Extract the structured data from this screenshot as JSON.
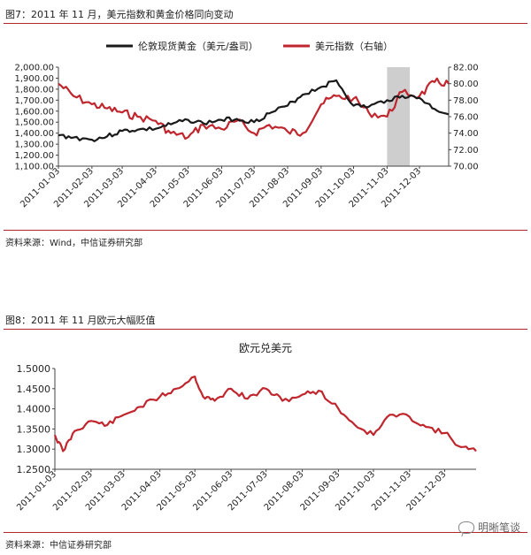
{
  "figure1": {
    "title": "图7：2011 年 11 月，美元指数和黄金价格同向变动",
    "source": "资料来源：Wind，中信证券研究部"
  },
  "figure2": {
    "title": "图8：2011 年 11 月欧元大幅贬值",
    "source": "资料来源：中信证券研究部"
  },
  "watermark": "明晰笔谈",
  "colors": {
    "gold": "#1a1a1a",
    "usd": "#c0262d",
    "eur": "#c0262d",
    "rule": "#b3242a",
    "shade": "#bdbdbd"
  },
  "chart_data": [
    {
      "type": "line",
      "title": "",
      "dates": [
        "2011-01-03",
        "2011-01-17",
        "2011-02-03",
        "2011-02-17",
        "2011-03-03",
        "2011-03-17",
        "2011-04-03",
        "2011-04-17",
        "2011-05-03",
        "2011-05-17",
        "2011-06-03",
        "2011-06-17",
        "2011-07-03",
        "2011-07-17",
        "2011-08-03",
        "2011-08-17",
        "2011-09-03",
        "2011-09-17",
        "2011-10-03",
        "2011-10-17",
        "2011-11-03",
        "2011-11-17",
        "2011-12-03",
        "2011-12-17",
        "2011-12-30"
      ],
      "x_tick_labels": [
        "2011-01-03",
        "2011-02-03",
        "2011-03-03",
        "2011-04-03",
        "2011-05-03",
        "2011-06-03",
        "2011-07-03",
        "2011-08-03",
        "2011-09-03",
        "2011-10-03",
        "2011-11-03",
        "2011-12-03"
      ],
      "series": [
        {
          "name": "伦敦现货黄金（美元/盎司）",
          "axis": "left",
          "values": [
            1380,
            1360,
            1340,
            1370,
            1420,
            1430,
            1440,
            1480,
            1520,
            1490,
            1520,
            1530,
            1500,
            1580,
            1650,
            1750,
            1820,
            1880,
            1650,
            1640,
            1700,
            1740,
            1720,
            1620,
            1570
          ]
        },
        {
          "name": "美元指数（右轴）",
          "axis": "right",
          "values": [
            80.0,
            78.5,
            77.5,
            77.0,
            76.5,
            76.0,
            75.5,
            74.0,
            73.5,
            75.0,
            74.5,
            75.5,
            74.0,
            75.0,
            74.2,
            74.0,
            77.5,
            78.5,
            78.2,
            76.5,
            76.0,
            79.0,
            78.5,
            80.2,
            80.0
          ]
        }
      ],
      "y_left": {
        "min": 1100,
        "max": 2000,
        "ticks": [
          "1,100.00",
          "1,200.00",
          "1,300.00",
          "1,400.00",
          "1,500.00",
          "1,600.00",
          "1,700.00",
          "1,800.00",
          "1,900.00",
          "2,000.00"
        ]
      },
      "y_right": {
        "min": 70,
        "max": 82,
        "ticks": [
          "70.00",
          "72.00",
          "74.00",
          "76.00",
          "78.00",
          "80.00",
          "82.00"
        ]
      },
      "shaded_range": [
        "2011-11-03",
        "2011-11-24"
      ],
      "legend": "top-center",
      "grid": false
    },
    {
      "type": "line",
      "title": "欧元兑美元",
      "dates": [
        "2011-01-03",
        "2011-01-10",
        "2011-01-20",
        "2011-02-03",
        "2011-02-17",
        "2011-03-03",
        "2011-03-17",
        "2011-04-03",
        "2011-04-17",
        "2011-05-03",
        "2011-05-10",
        "2011-05-20",
        "2011-06-03",
        "2011-06-17",
        "2011-07-03",
        "2011-07-17",
        "2011-08-03",
        "2011-08-17",
        "2011-09-03",
        "2011-09-17",
        "2011-10-03",
        "2011-10-17",
        "2011-11-03",
        "2011-11-17",
        "2011-12-03",
        "2011-12-17",
        "2011-12-30"
      ],
      "x_tick_labels": [
        "2011-01-03",
        "2011-02-03",
        "2011-03-03",
        "2011-04-03",
        "2011-05-03",
        "2011-06-03",
        "2011-07-03",
        "2011-08-03",
        "2011-09-03",
        "2011-10-03",
        "2011-11-03",
        "2011-12-03"
      ],
      "values": [
        1.335,
        1.295,
        1.345,
        1.37,
        1.36,
        1.385,
        1.405,
        1.43,
        1.45,
        1.48,
        1.43,
        1.42,
        1.45,
        1.425,
        1.45,
        1.42,
        1.435,
        1.445,
        1.4,
        1.36,
        1.335,
        1.385,
        1.38,
        1.355,
        1.34,
        1.305,
        1.295
      ],
      "y": {
        "min": 1.25,
        "max": 1.5,
        "ticks": [
          "1.2500",
          "1.3000",
          "1.3500",
          "1.4000",
          "1.4500",
          "1.5000"
        ]
      },
      "legend": "none",
      "grid": false
    }
  ]
}
